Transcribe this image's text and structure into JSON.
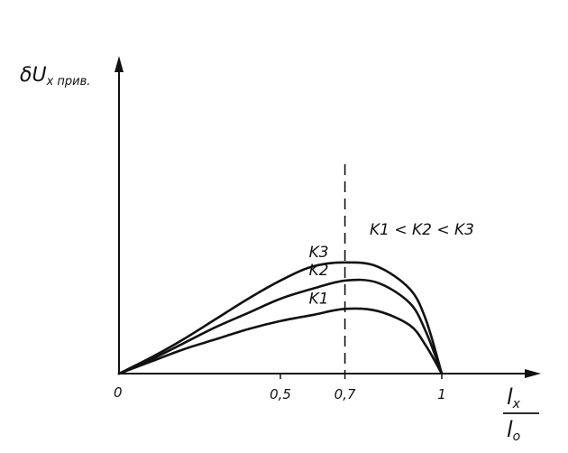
{
  "chart_data": {
    "type": "line",
    "ylabel_main": "δU",
    "ylabel_sub": "x прив.",
    "xlabel_num": "l",
    "xlabel_num_sub": "x",
    "xlabel_den": "l",
    "xlabel_den_sub": "o",
    "relation": "K1 < K2 < K3",
    "xlim": [
      0,
      1.1
    ],
    "ylim": [
      0,
      1.0
    ],
    "x_ticks": [
      {
        "value": 0.5,
        "label": "0,5"
      },
      {
        "value": 0.7,
        "label": "0,7"
      },
      {
        "value": 1.0,
        "label": "1"
      }
    ],
    "origin_label": "0",
    "marker_x": 0.7,
    "series": [
      {
        "name": "K1",
        "points": [
          [
            0,
            0
          ],
          [
            0.1,
            0.06
          ],
          [
            0.2,
            0.12
          ],
          [
            0.3,
            0.17
          ],
          [
            0.4,
            0.22
          ],
          [
            0.5,
            0.26
          ],
          [
            0.6,
            0.29
          ],
          [
            0.7,
            0.32
          ],
          [
            0.8,
            0.31
          ],
          [
            0.9,
            0.24
          ],
          [
            0.95,
            0.14
          ],
          [
            1.0,
            0
          ]
        ]
      },
      {
        "name": "K2",
        "points": [
          [
            0,
            0
          ],
          [
            0.1,
            0.07
          ],
          [
            0.2,
            0.15
          ],
          [
            0.3,
            0.23
          ],
          [
            0.4,
            0.3
          ],
          [
            0.5,
            0.37
          ],
          [
            0.6,
            0.42
          ],
          [
            0.7,
            0.46
          ],
          [
            0.8,
            0.45
          ],
          [
            0.9,
            0.35
          ],
          [
            0.95,
            0.21
          ],
          [
            1.0,
            0
          ]
        ]
      },
      {
        "name": "K3",
        "points": [
          [
            0,
            0
          ],
          [
            0.1,
            0.08
          ],
          [
            0.2,
            0.17
          ],
          [
            0.3,
            0.27
          ],
          [
            0.4,
            0.37
          ],
          [
            0.5,
            0.46
          ],
          [
            0.6,
            0.53
          ],
          [
            0.7,
            0.55
          ],
          [
            0.8,
            0.53
          ],
          [
            0.9,
            0.42
          ],
          [
            0.95,
            0.27
          ],
          [
            1.0,
            0
          ]
        ]
      }
    ]
  }
}
